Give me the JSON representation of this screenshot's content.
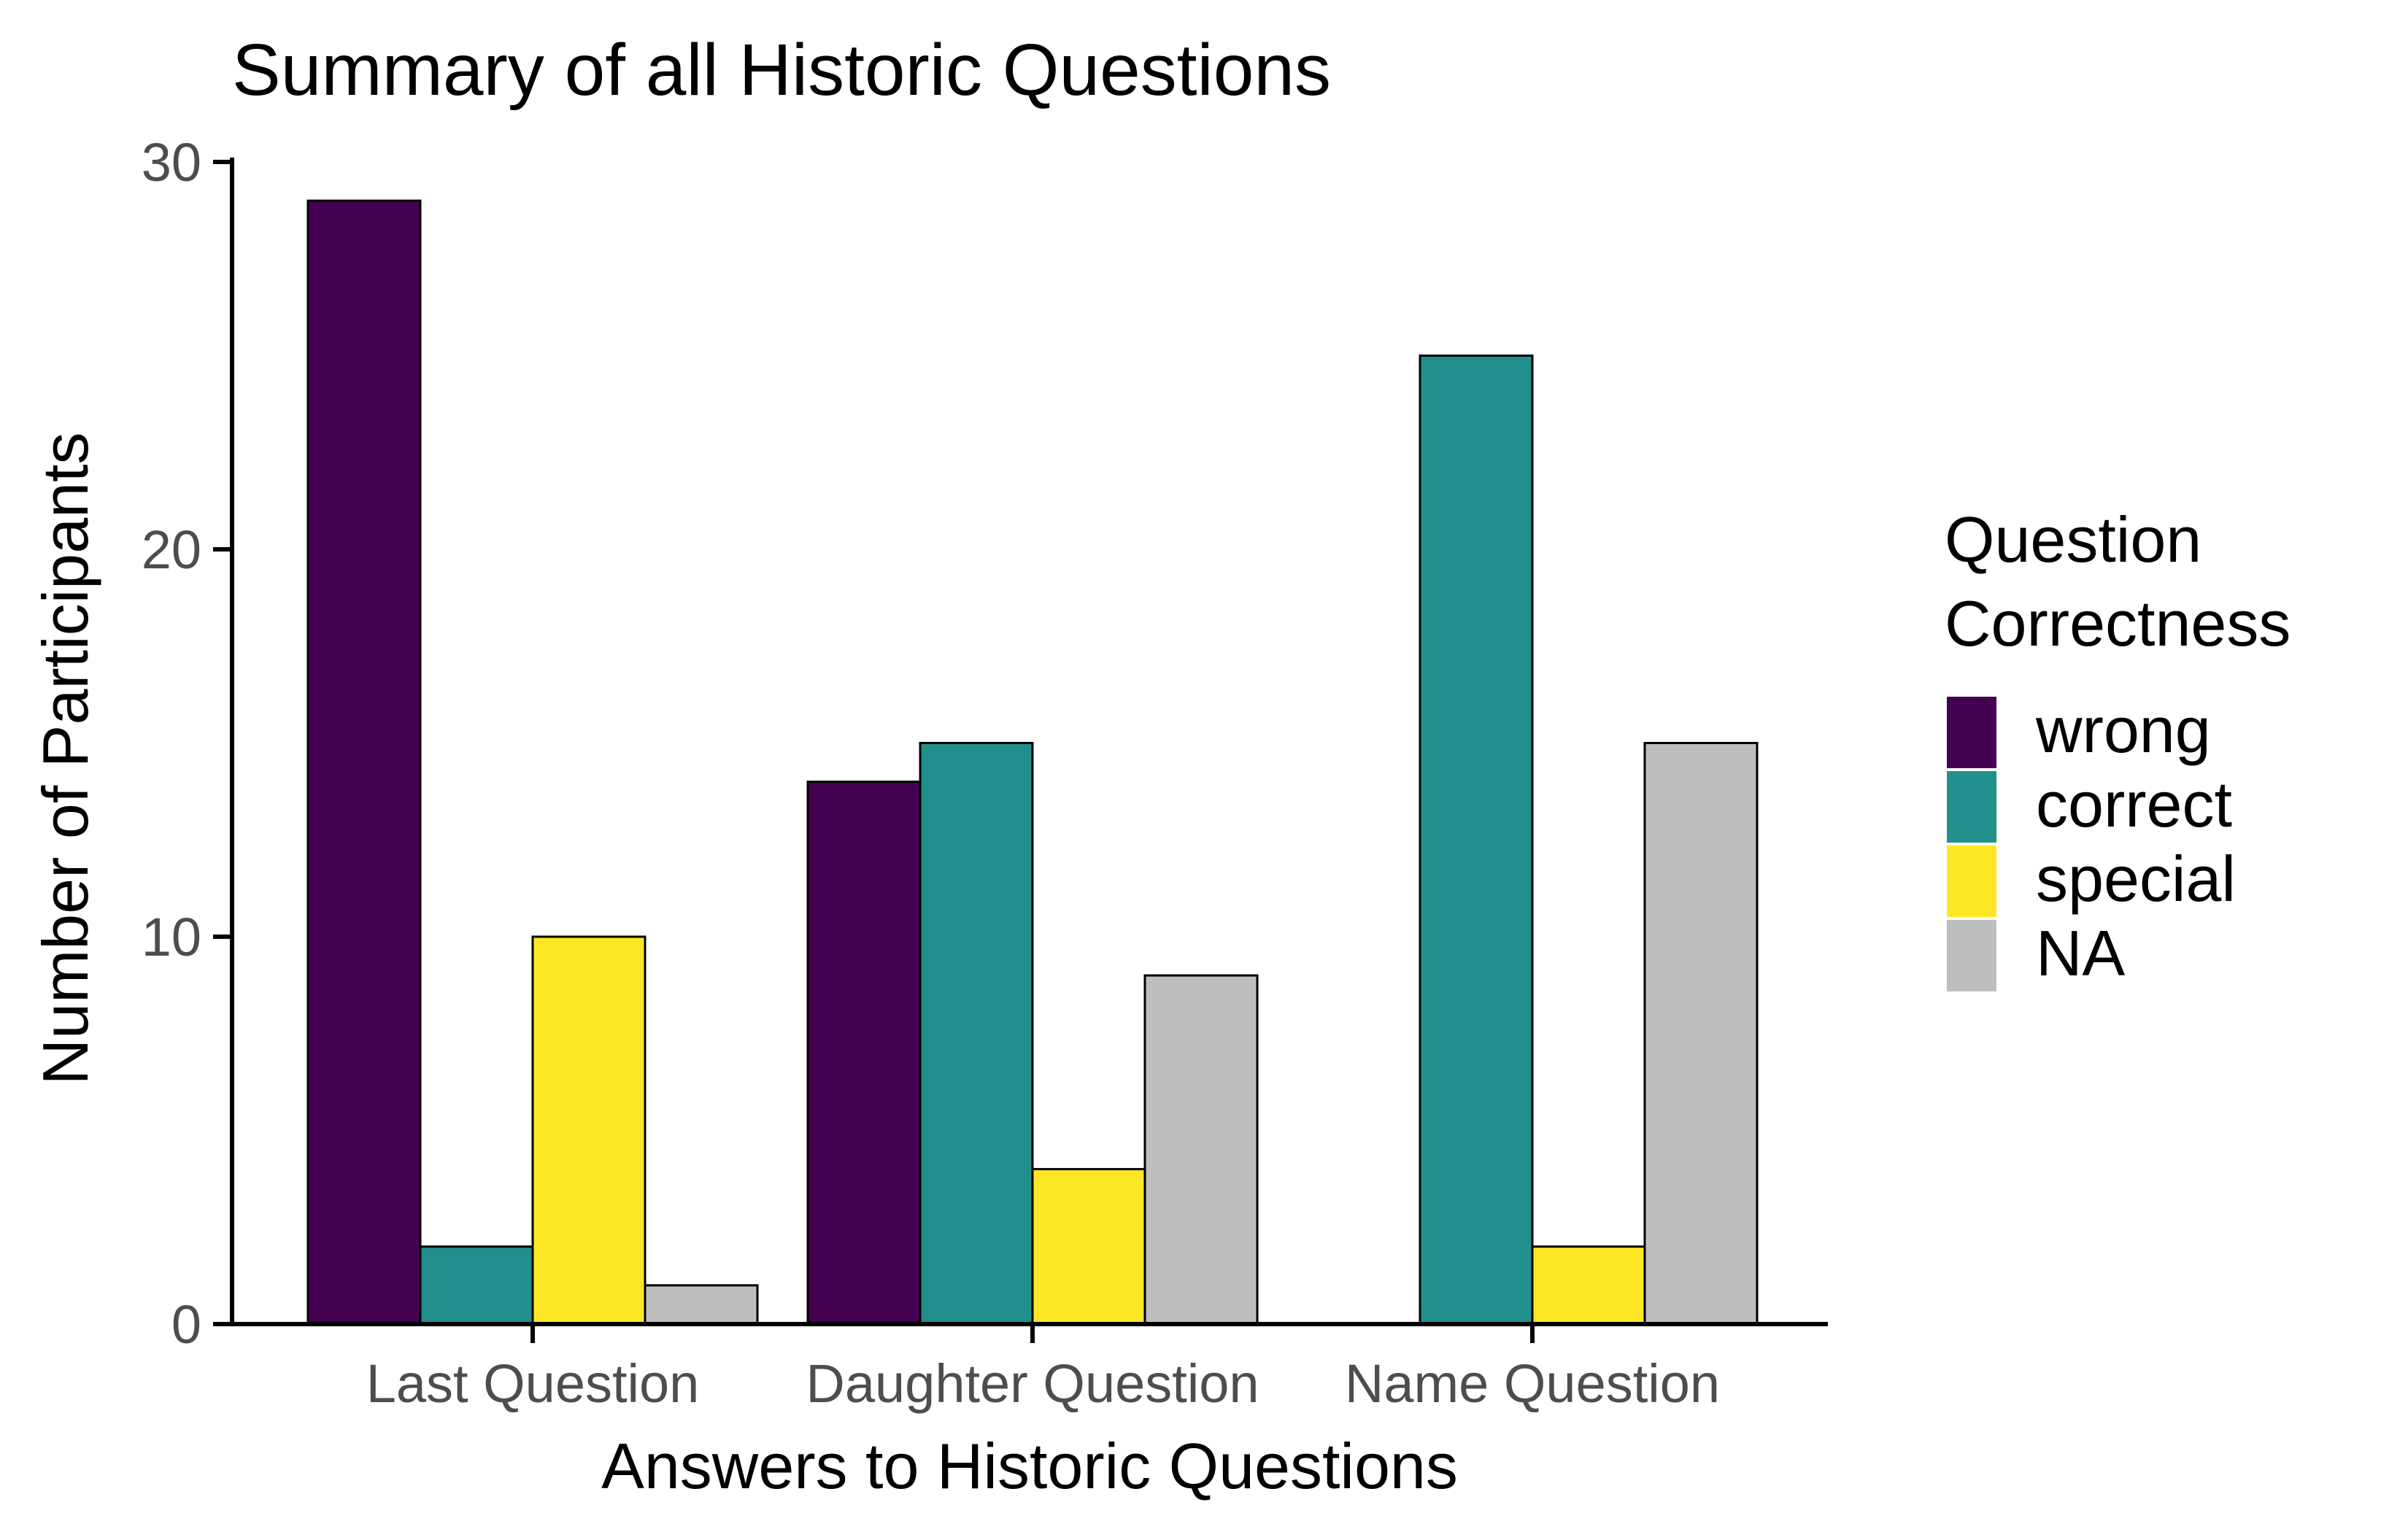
{
  "chart_data": {
    "type": "bar",
    "title": "Summary of all Historic Questions",
    "xlabel": "Answers to Historic Questions",
    "ylabel": "Number of Participants",
    "ylim": [
      0,
      30
    ],
    "yticks": [
      "0",
      "10",
      "20",
      "30"
    ],
    "grid": false,
    "legend_position": "right",
    "legend_title_lines": [
      "Question",
      "Correctness"
    ],
    "categories": [
      "Last Question",
      "Daughter Question",
      "Name Question"
    ],
    "series": [
      {
        "name": "wrong",
        "color": "#440154",
        "values": [
          29,
          14,
          null
        ]
      },
      {
        "name": "correct",
        "color": "#21908C",
        "values": [
          2,
          15,
          25
        ]
      },
      {
        "name": "special",
        "color": "#FDE725",
        "values": [
          10,
          4,
          2
        ]
      },
      {
        "name": "NA",
        "color": "#BEBEBE",
        "values": [
          1,
          9,
          15
        ]
      }
    ]
  }
}
